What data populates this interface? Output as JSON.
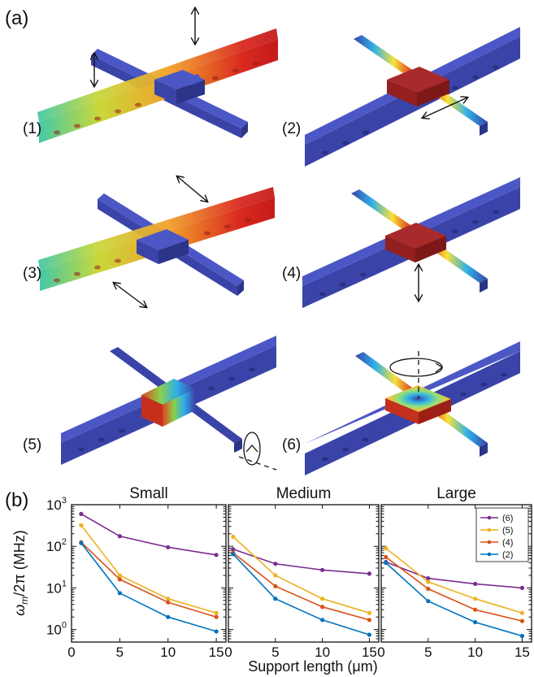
{
  "panel_a": {
    "label": "(a)",
    "modes": [
      {
        "label": "(1)"
      },
      {
        "label": "(2)"
      },
      {
        "label": "(3)"
      },
      {
        "label": "(4)"
      },
      {
        "label": "(5)"
      },
      {
        "label": "(6)"
      }
    ]
  },
  "panel_b": {
    "label": "(b)"
  },
  "colors": {
    "beam_blue": "#3a44a8",
    "beam_top": "#4c57c6",
    "beam_side": "#2b3487",
    "hot_red": "#c01818",
    "series_6": "#7b2d8e",
    "series_5": "#edb120",
    "series_4": "#d95319",
    "series_2": "#0072bd"
  },
  "chart_data": [
    {
      "type": "line",
      "title": "Small",
      "xlabel": "Support length (μm)",
      "ylabel": "ω_m/2π (MHz)",
      "yscale": "log",
      "xlim": [
        0,
        16
      ],
      "ylim": [
        0.5,
        1000
      ],
      "xticks": [
        "0",
        "5",
        "10",
        "15"
      ],
      "yticks": [
        "10^0",
        "10^1",
        "10^2",
        "10^3"
      ],
      "x": [
        1,
        5,
        10,
        15
      ],
      "series": [
        {
          "name": "(6)",
          "values": [
            600,
            175,
            95,
            62
          ]
        },
        {
          "name": "(5)",
          "values": [
            320,
            20,
            5.5,
            2.5
          ]
        },
        {
          "name": "(4)",
          "values": [
            125,
            16,
            4.5,
            2.0
          ]
        },
        {
          "name": "(2)",
          "values": [
            120,
            7.5,
            2.0,
            0.9
          ]
        }
      ]
    },
    {
      "type": "line",
      "title": "Medium",
      "xlabel": "Support length (μm)",
      "yscale": "log",
      "xlim": [
        0,
        16
      ],
      "ylim": [
        0.5,
        1000
      ],
      "xticks": [
        "0",
        "5",
        "10",
        "15"
      ],
      "x": [
        0.5,
        5,
        10,
        15
      ],
      "series": [
        {
          "name": "(6)",
          "values": [
            85,
            38,
            27,
            22
          ]
        },
        {
          "name": "(5)",
          "values": [
            170,
            20,
            5.5,
            2.5
          ]
        },
        {
          "name": "(4)",
          "values": [
            70,
            11,
            3.5,
            1.7
          ]
        },
        {
          "name": "(2)",
          "values": [
            65,
            5.5,
            1.7,
            0.75
          ]
        }
      ]
    },
    {
      "type": "line",
      "title": "Large",
      "xlabel": "Support length (μm)",
      "yscale": "log",
      "xlim": [
        0,
        16
      ],
      "ylim": [
        0.5,
        1000
      ],
      "xticks": [
        "0",
        "5",
        "10",
        "15"
      ],
      "x": [
        0.5,
        5,
        10,
        15
      ],
      "legend": "top-right",
      "series": [
        {
          "name": "(6)",
          "values": [
            42,
            17,
            12.5,
            10
          ]
        },
        {
          "name": "(5)",
          "values": [
            90,
            14,
            5.5,
            2.5
          ]
        },
        {
          "name": "(4)",
          "values": [
            55,
            9.5,
            3.0,
            1.6
          ]
        },
        {
          "name": "(2)",
          "values": [
            40,
            4.8,
            1.5,
            0.7
          ]
        }
      ]
    }
  ],
  "x_axis_label": "Support length (μm)"
}
